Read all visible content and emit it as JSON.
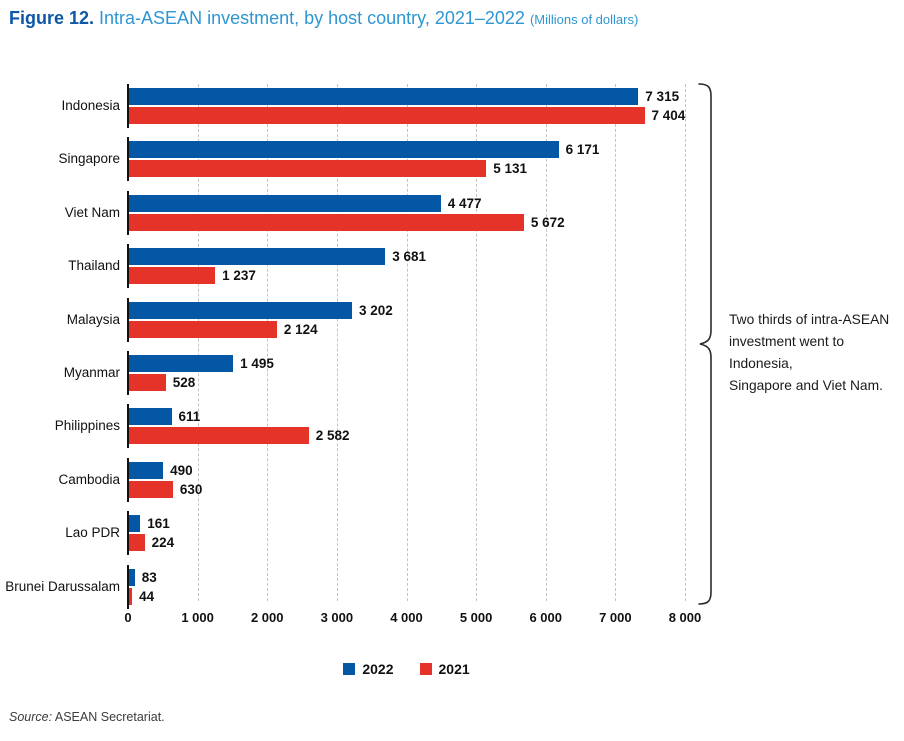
{
  "title": {
    "prefix": "Figure 12.",
    "main": " Intra-ASEAN investment, by host country, 2021–2022 ",
    "unit": "(Millions of dollars)"
  },
  "chart_data": {
    "type": "bar",
    "orientation": "horizontal",
    "title": "Intra-ASEAN investment, by host country, 2021–2022",
    "unit": "Millions of dollars",
    "categories": [
      "Indonesia",
      "Singapore",
      "Viet Nam",
      "Thailand",
      "Malaysia",
      "Myanmar",
      "Philippines",
      "Cambodia",
      "Lao PDR",
      "Brunei Darussalam"
    ],
    "series": [
      {
        "name": "2022",
        "color": "#0357a4",
        "values": [
          7315,
          6171,
          4477,
          3681,
          3202,
          1495,
          611,
          490,
          161,
          83
        ]
      },
      {
        "name": "2021",
        "color": "#e6332a",
        "values": [
          7404,
          5131,
          5672,
          1237,
          2124,
          528,
          2582,
          630,
          224,
          44
        ]
      }
    ],
    "value_labels": [
      [
        "7 315",
        "6 171",
        "4 477",
        "3 681",
        "3 202",
        "1 495",
        "611",
        "490",
        "161",
        "83"
      ],
      [
        "7 404",
        "5 131",
        "5 672",
        "1 237",
        "2 124",
        "528",
        "2 582",
        "630",
        "224",
        "44"
      ]
    ],
    "xlim": [
      0,
      8000
    ],
    "x_ticks": [
      "0",
      "1 000",
      "2 000",
      "3 000",
      "4 000",
      "5 000",
      "6 000",
      "7 000",
      "8 000"
    ],
    "grid": "vertical-dashed",
    "legend_position": "bottom"
  },
  "annotation": {
    "lines": [
      "Two thirds of intra-ASEAN",
      "investment went to Indonesia,",
      "Singapore and Viet Nam."
    ]
  },
  "legend": [
    {
      "label": "2022",
      "color": "#0357a4"
    },
    {
      "label": "2021",
      "color": "#e6332a"
    }
  ],
  "source": {
    "prefix": "Source:",
    "text": " ASEAN Secretariat."
  }
}
